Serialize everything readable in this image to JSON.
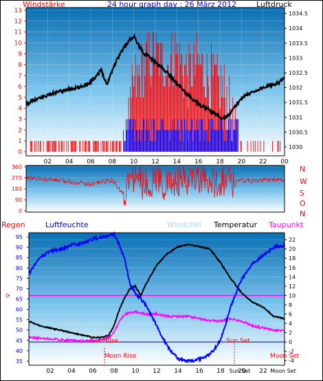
{
  "header": {
    "left_label": "Windstärke",
    "title": "24 hour graph day : 26 März 2012",
    "right_label": "Luftdruck"
  },
  "colors": {
    "wind": "#ff0000",
    "gust": "#0000ff",
    "pressure": "#000000",
    "humidity": "#0000ff",
    "rain": "#ff0000",
    "windchill": "#add8e6",
    "temperature": "#000000",
    "dewpoint": "#ff00ff",
    "sky_top": "#0a6fb3",
    "sky_bottom": "#ffffff"
  },
  "chart_data": [
    {
      "type": "line",
      "title": "24 hour graph day : 26 März 2012",
      "left_axis_label": "Windstärke",
      "right_axis_label": "Luftdruck",
      "x_ticks": [
        "02",
        "04",
        "06",
        "08",
        "10",
        "12",
        "14",
        "16",
        "18",
        "20",
        "22",
        "00"
      ],
      "left_ticks": [
        0,
        1,
        2,
        3,
        4,
        5,
        6,
        7,
        8,
        9,
        10,
        11,
        12,
        13
      ],
      "right_ticks": [
        1030,
        1030.5,
        1031,
        1031.5,
        1032,
        1032.5,
        1033,
        1033.5,
        1034,
        1034.5
      ],
      "ylim_left": [
        0,
        13
      ],
      "ylim_right": [
        1029.7,
        1034.7
      ],
      "series": [
        {
          "name": "Luftdruck",
          "axis": "right",
          "hours": [
            0,
            1,
            2,
            3,
            4,
            5,
            6,
            7,
            7.5,
            8,
            8.5,
            9,
            9.5,
            10,
            10.5,
            11,
            12,
            13,
            14,
            15,
            16,
            17,
            18,
            18.5,
            19,
            19.5,
            20,
            21,
            22,
            23,
            24
          ],
          "values": [
            1031.45,
            1031.6,
            1031.75,
            1031.85,
            1031.95,
            1032.0,
            1032.2,
            1032.6,
            1032.1,
            1032.6,
            1033.0,
            1033.3,
            1033.55,
            1033.75,
            1033.4,
            1033.15,
            1032.85,
            1032.55,
            1032.15,
            1031.75,
            1031.45,
            1031.25,
            1031.0,
            1031.0,
            1031.15,
            1031.4,
            1031.65,
            1031.85,
            1032.0,
            1032.1,
            1032.3
          ]
        },
        {
          "name": "Windstärke",
          "axis": "left",
          "hours": [
            0,
            8.8,
            9.5,
            10,
            11,
            12,
            13,
            14,
            15,
            16,
            17,
            18,
            19,
            19.5,
            20,
            24
          ],
          "values": [
            1,
            1,
            2,
            6,
            8,
            9,
            8,
            9,
            7,
            8,
            7,
            6,
            4,
            1,
            0,
            1
          ]
        }
      ]
    },
    {
      "type": "scatter",
      "title": "",
      "x_ticks": [],
      "left_ticks": [
        0,
        90,
        180,
        270,
        360
      ],
      "right_ticks": [
        "N",
        "W",
        "S",
        "O",
        "N"
      ],
      "ylim": [
        0,
        360
      ],
      "series": [
        {
          "name": "",
          "hours": [
            0,
            2,
            4,
            6,
            8,
            9,
            10,
            11,
            12,
            13,
            14,
            15,
            16,
            17,
            18,
            19,
            20,
            21,
            22,
            23,
            24
          ],
          "values": [
            270,
            255,
            240,
            220,
            250,
            140,
            300,
            210,
            280,
            200,
            260,
            220,
            290,
            180,
            270,
            240,
            250,
            240,
            250,
            260,
            250
          ]
        }
      ]
    },
    {
      "type": "line",
      "title": "",
      "labels": {
        "rain": "Regen",
        "humidity": "Luftfeuchte",
        "windchill": "Windchill",
        "temperature": "Temperatur",
        "dewpoint": "Taupunkt"
      },
      "x_ticks": [
        "02",
        "04",
        "06",
        "08",
        "10",
        "12",
        "14",
        "16",
        "18",
        "20",
        "22"
      ],
      "left_ticks": [
        35,
        40,
        45,
        50,
        55,
        60,
        65,
        70,
        75,
        80,
        85,
        90,
        95
      ],
      "right_ticks": [
        -4,
        -2,
        0,
        2,
        4,
        6,
        8,
        10,
        12,
        14,
        16,
        18,
        20,
        22
      ],
      "rain_tick": "0",
      "ylim_left": [
        33,
        97
      ],
      "ylim_right": [
        -5,
        23.5
      ],
      "annotations": {
        "sun_rise": "Sun Rise",
        "sun_set": "Sun Set",
        "moon_rise": "Moon Rise",
        "moon_set": "Moon Set",
        "sun_set_axis": "Sun Set",
        "moon_set_axis": "Moon Set"
      },
      "series": [
        {
          "name": "Luftfeuchte",
          "axis": "left",
          "hours": [
            0,
            1,
            2,
            3,
            4,
            5,
            6,
            7,
            8,
            8.5,
            9,
            9.5,
            10,
            11,
            12,
            13,
            14,
            15,
            16,
            17,
            18,
            19,
            20,
            21,
            22,
            23,
            24
          ],
          "values": [
            77,
            85,
            88,
            89,
            91,
            92,
            94,
            95,
            96,
            91,
            84,
            72,
            68,
            62,
            52,
            42,
            36,
            35,
            36,
            38,
            45,
            62,
            75,
            82,
            86,
            90,
            91
          ]
        },
        {
          "name": "Temperatur",
          "axis": "right",
          "hours": [
            0,
            1,
            2,
            3,
            4,
            5,
            6,
            7,
            7.5,
            8,
            8.5,
            9,
            9.5,
            10,
            10.5,
            11,
            12,
            13,
            14,
            15,
            16,
            17,
            18,
            19,
            20,
            21,
            22,
            23,
            24
          ],
          "values": [
            4.5,
            3.5,
            3.0,
            2.5,
            2.0,
            1.5,
            1.0,
            1.0,
            1.5,
            3.5,
            7.0,
            9.5,
            11.5,
            12.0,
            10.0,
            12.5,
            16.5,
            19.0,
            20.5,
            21.0,
            20.5,
            20.0,
            17.0,
            13.5,
            10.5,
            8.5,
            7.5,
            5.5,
            5.0
          ]
        },
        {
          "name": "Taupunkt",
          "axis": "right",
          "hours": [
            0,
            1,
            2,
            3,
            4,
            5,
            6,
            7,
            7.5,
            8,
            8.5,
            9,
            10,
            11,
            12,
            13,
            14,
            15,
            16,
            17,
            18,
            19,
            20,
            21,
            22,
            23,
            24
          ],
          "values": [
            1.0,
            0.8,
            0.7,
            0.5,
            0.3,
            0.2,
            0.3,
            0.5,
            1.0,
            2.0,
            4.5,
            6.0,
            6.5,
            6.0,
            6.0,
            5.5,
            5.5,
            5.5,
            5.0,
            4.5,
            4.5,
            5.0,
            4.5,
            3.5,
            3.0,
            2.5,
            2.5
          ]
        },
        {
          "name": "Regen",
          "axis": "rain",
          "hours": [
            0,
            24
          ],
          "values": [
            0,
            0
          ]
        }
      ]
    }
  ]
}
